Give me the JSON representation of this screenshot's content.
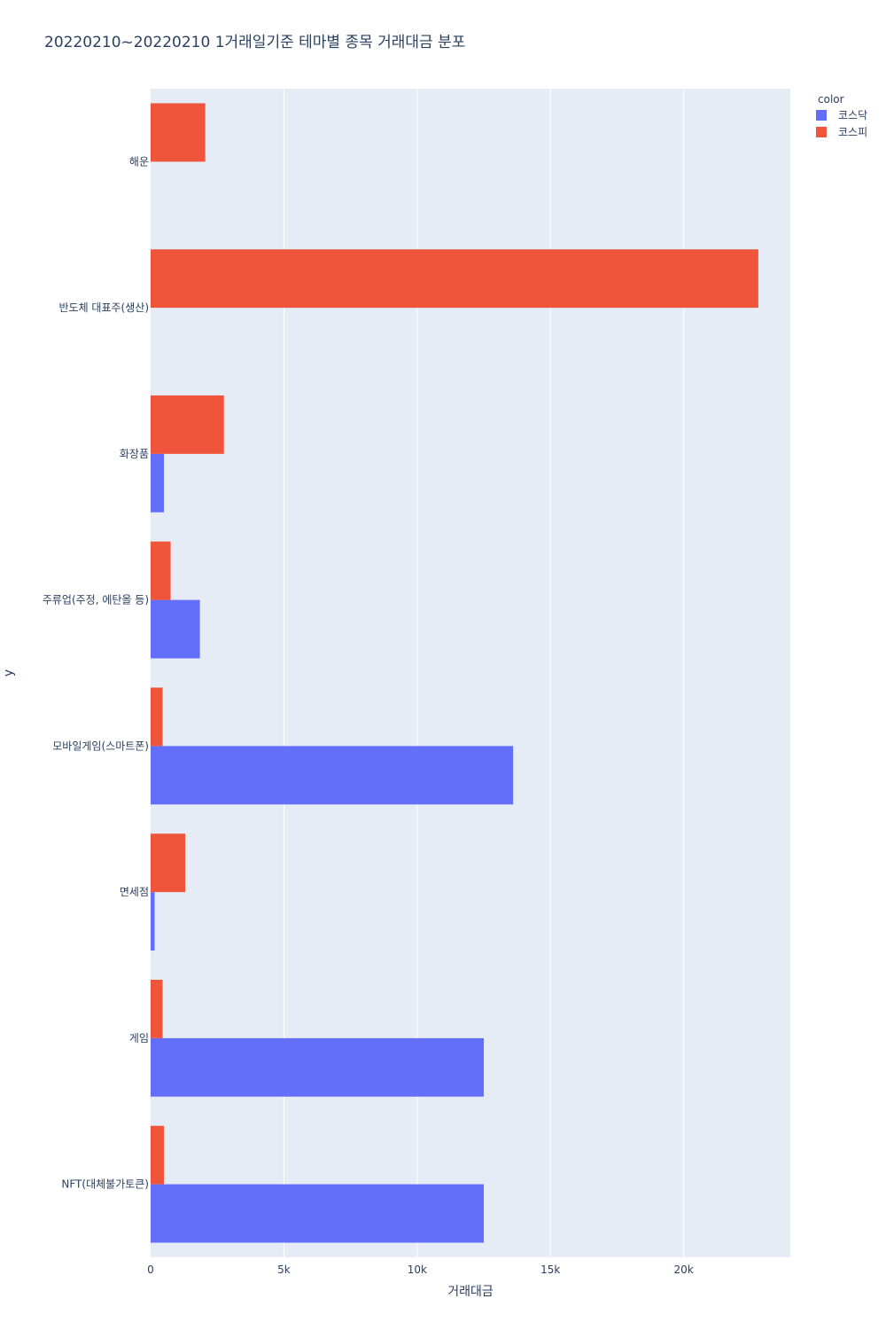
{
  "chart_data": {
    "type": "bar",
    "orientation": "horizontal",
    "barmode": "group",
    "title": "20220210~20220210 1거래일기준 테마별 종목 거래대금 분포",
    "xlabel": "거래대금",
    "ylabel": "y",
    "xlim": [
      0,
      24000
    ],
    "x_ticks": [
      {
        "value": 0,
        "label": "0"
      },
      {
        "value": 5000,
        "label": "5k"
      },
      {
        "value": 10000,
        "label": "10k"
      },
      {
        "value": 15000,
        "label": "15k"
      },
      {
        "value": 20000,
        "label": "20k"
      }
    ],
    "grid": true,
    "legend": {
      "title": "color",
      "position": "top-right"
    },
    "categories": [
      "해운",
      "반도체 대표주(생산)",
      "화장품",
      "주류업(주정, 에탄올 등)",
      "모바일게임(스마트폰)",
      "면세점",
      "게임",
      "NFT(대체불가토큰)"
    ],
    "series": [
      {
        "name": "코스닥",
        "color": "#636efa",
        "values": [
          0,
          0,
          500,
          1850,
          13600,
          150,
          12500,
          12500
        ]
      },
      {
        "name": "코스피",
        "color": "#ef553b",
        "values": [
          2050,
          22800,
          2750,
          750,
          450,
          1300,
          450,
          500
        ]
      }
    ]
  }
}
